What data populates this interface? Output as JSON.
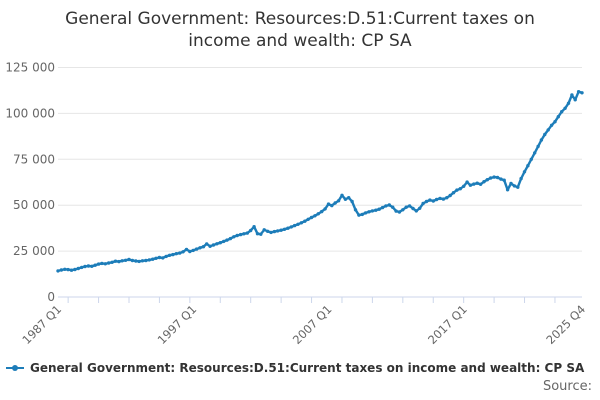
{
  "title": "General Government: Resources:D.51:Current taxes on income and wealth: CP SA",
  "legend": {
    "label": "General Government: Resources:D.51:Current taxes on income and wealth: CP SA"
  },
  "source": "Source:",
  "colors": {
    "series": "#1d7db9",
    "grid": "#e6e6e6",
    "axis": "#ccd6eb",
    "tick_label": "#666666",
    "text": "#333333"
  },
  "chart_data": {
    "type": "line",
    "title": "General Government: Resources:D.51:Current taxes on income and wealth: CP SA",
    "xlabel": "",
    "ylabel": "",
    "frequency": "quarterly",
    "x_start": "1987 Q1",
    "x_end": "2025 Q4",
    "ylim": [
      0,
      125000
    ],
    "grid": true,
    "legend_position": "bottom-left",
    "y_ticks": [
      {
        "value": 0,
        "label": "0"
      },
      {
        "value": 25000,
        "label": "25 000"
      },
      {
        "value": 50000,
        "label": "50 000"
      },
      {
        "value": 75000,
        "label": "75 000"
      },
      {
        "value": 100000,
        "label": "100 000"
      },
      {
        "value": 125000,
        "label": "125 000"
      }
    ],
    "x_tick_labels": [
      {
        "index": 0,
        "label": "1987 Q1"
      },
      {
        "index": 40,
        "label": "1997 Q1"
      },
      {
        "index": 80,
        "label": "2007 Q1"
      },
      {
        "index": 120,
        "label": "2017 Q1"
      },
      {
        "index": 155,
        "label": "2025 Q4"
      }
    ],
    "values": [
      14200,
      14700,
      15100,
      14900,
      14600,
      15000,
      15500,
      16100,
      16600,
      16900,
      16700,
      17300,
      17900,
      18300,
      18100,
      18500,
      18900,
      19500,
      19300,
      19700,
      20000,
      20400,
      19900,
      19600,
      19400,
      19700,
      19900,
      20200,
      20600,
      21100,
      21500,
      21300,
      22100,
      22700,
      23100,
      23600,
      23900,
      24600,
      25900,
      24800,
      25400,
      26100,
      26800,
      27400,
      28900,
      27600,
      28300,
      29000,
      29600,
      30300,
      31000,
      31800,
      32800,
      33500,
      34000,
      34400,
      34800,
      36200,
      38300,
      34500,
      34200,
      36600,
      35800,
      35200,
      35600,
      36000,
      36400,
      36900,
      37500,
      38200,
      38900,
      39600,
      40400,
      41300,
      42300,
      43300,
      44200,
      45300,
      46500,
      48000,
      50600,
      49800,
      51200,
      52400,
      55400,
      53200,
      54100,
      52000,
      47500,
      44600,
      45000,
      45800,
      46400,
      46900,
      47300,
      47800,
      48700,
      49600,
      50100,
      48900,
      46800,
      46300,
      47500,
      48900,
      49600,
      48200,
      46900,
      48300,
      50900,
      52000,
      52800,
      52300,
      53100,
      53700,
      53300,
      54100,
      55300,
      56800,
      58200,
      59000,
      60300,
      62600,
      60900,
      61500,
      62000,
      61400,
      62800,
      63900,
      64800,
      65300,
      65100,
      64200,
      63600,
      58400,
      61800,
      60500,
      59800,
      64500,
      68200,
      71500,
      75000,
      78500,
      82000,
      85500,
      88500,
      91000,
      93500,
      95500,
      98200,
      100900,
      102800,
      105500,
      110000,
      107400,
      111800,
      111200
    ]
  }
}
